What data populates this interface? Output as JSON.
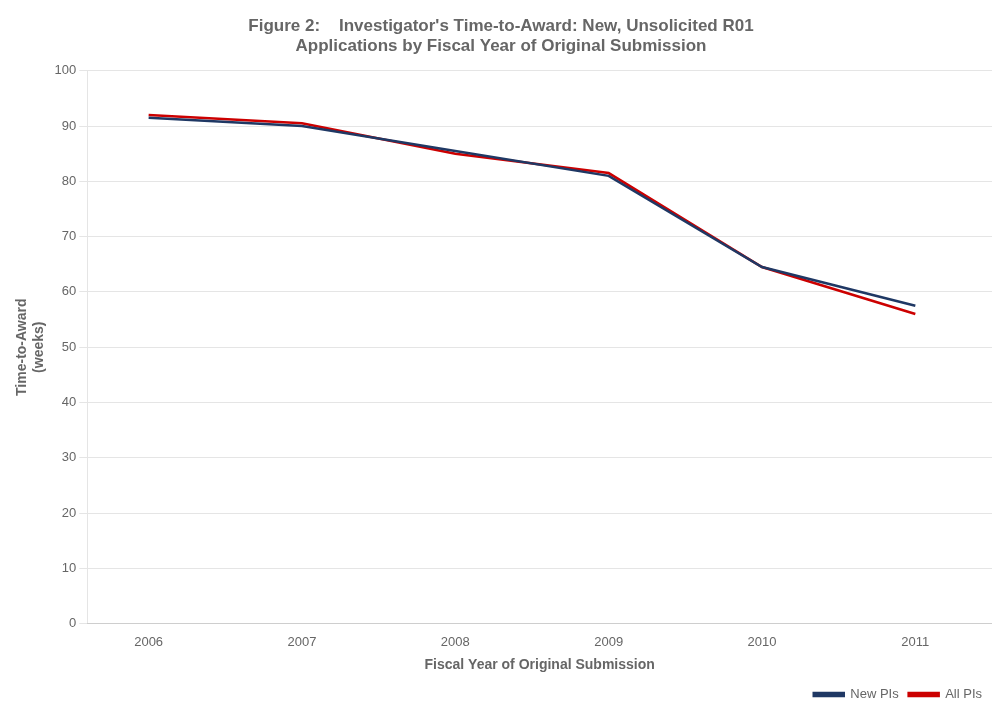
{
  "chart_data": {
    "type": "line",
    "title": [
      "Figure 2:    Investigator's Time-to-Award: New, Unsolicited R01",
      "Applications by Fiscal Year of Original Submission"
    ],
    "x_label": "Fiscal Year of Original Submission",
    "y_label": [
      "Time-to-Award",
      "(weeks)"
    ],
    "x": [
      2006,
      2007,
      2008,
      2009,
      2010,
      2011
    ],
    "series": [
      {
        "name": "New PIs",
        "color": "#1F3864",
        "values": [
          91.5,
          90.0,
          85.5,
          81.0,
          64.5,
          57.5
        ]
      },
      {
        "name": "All PIs",
        "color": "#CC0000",
        "values": [
          92.0,
          90.5,
          85.0,
          81.5,
          64.5,
          56.0
        ]
      }
    ],
    "xlim": [
      2005.6,
      2011.5
    ],
    "xticks": [
      2006,
      2007,
      2008,
      2009,
      2010,
      2011
    ],
    "ylim": [
      0,
      100
    ],
    "yticks": [
      0,
      10,
      20,
      30,
      40,
      50,
      60,
      70,
      80,
      90,
      100
    ],
    "grid": true,
    "legend": "lower right"
  }
}
